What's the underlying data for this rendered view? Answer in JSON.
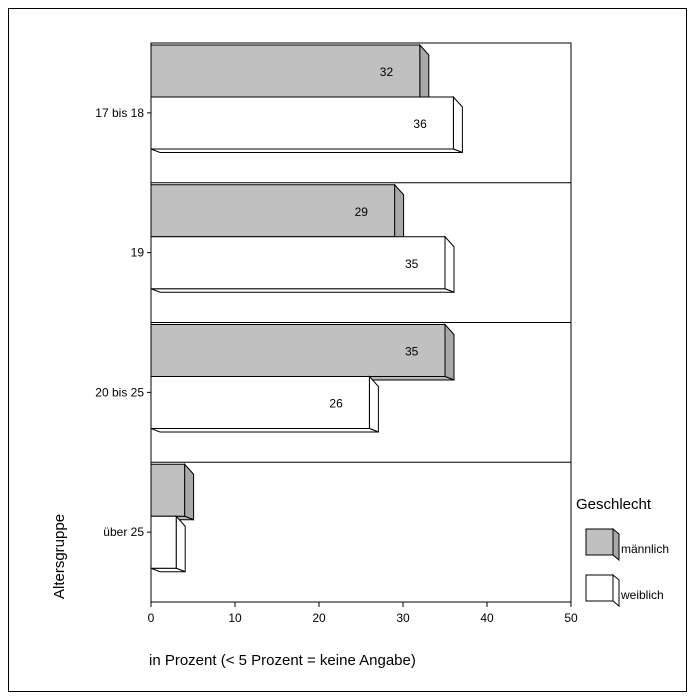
{
  "chart_data": {
    "type": "bar",
    "orientation": "horizontal",
    "categories": [
      "17 bis 18",
      "19",
      "20 bis 25",
      "über 25"
    ],
    "series": [
      {
        "name": "männlich",
        "values": [
          32,
          29,
          35,
          4
        ],
        "value_labels": [
          "32",
          "29",
          "35",
          ""
        ],
        "color": "#c0c0c0"
      },
      {
        "name": "weiblich",
        "values": [
          36,
          35,
          26,
          3
        ],
        "value_labels": [
          "36",
          "35",
          "26",
          ""
        ],
        "color": "#ffffff"
      }
    ],
    "xlabel": "in Prozent (< 5 Prozent = keine Angabe)",
    "ylabel": "Altersgruppe",
    "xlim": [
      0,
      50
    ],
    "xticks": [
      "0",
      "10",
      "20",
      "30",
      "40",
      "50"
    ],
    "legend_title": "Geschlecht",
    "legend_position": "right",
    "style": "3d"
  }
}
